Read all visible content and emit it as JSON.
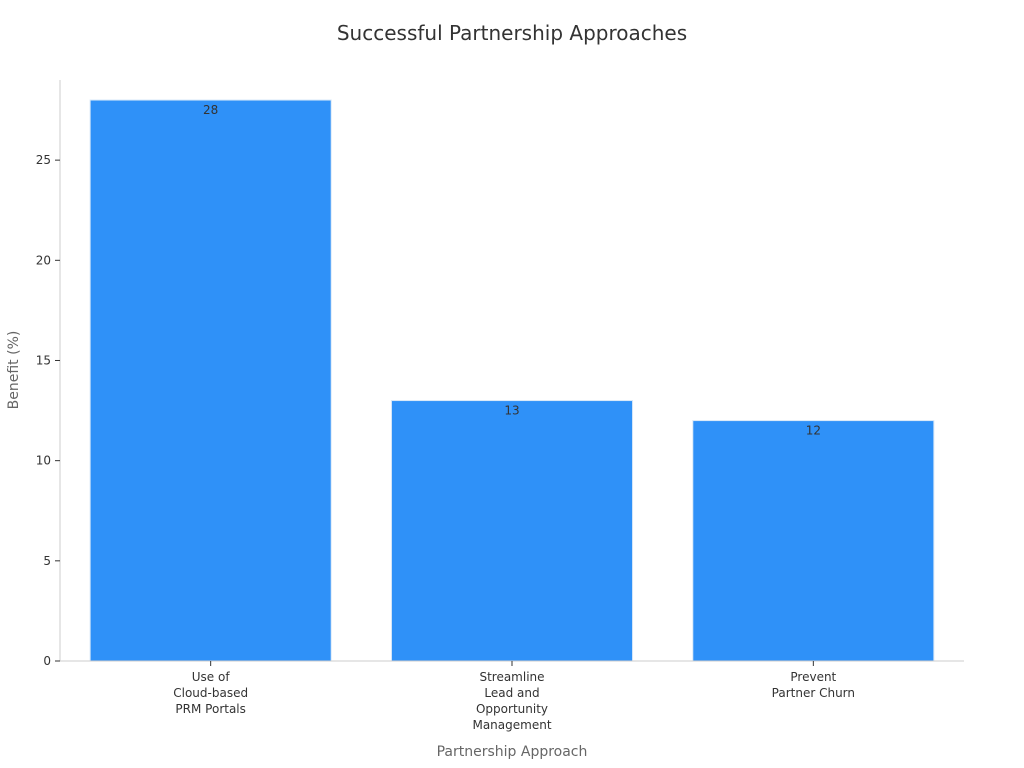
{
  "chart_data": {
    "type": "bar",
    "title": "Successful Partnership Approaches",
    "xlabel": "Partnership Approach",
    "ylabel": "Benefit (%)",
    "categories": [
      [
        "Use of",
        "Cloud-based",
        "PRM Portals"
      ],
      [
        "Streamline",
        "Lead and",
        "Opportunity",
        "Management"
      ],
      [
        "Prevent",
        "Partner Churn"
      ]
    ],
    "values": [
      28,
      13,
      12
    ],
    "ylim": [
      0,
      29
    ],
    "yticks": [
      0,
      5,
      10,
      15,
      20,
      25
    ],
    "bar_color": "#2f91f8",
    "grid": false,
    "legend": "none"
  }
}
